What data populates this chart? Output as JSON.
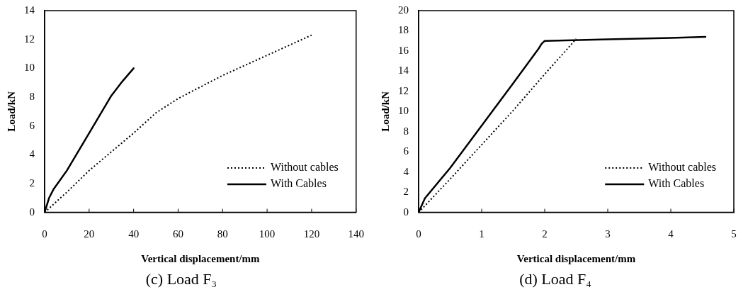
{
  "chart_data": [
    {
      "type": "line",
      "title": "(c) Load F₃",
      "xlabel": "Vertical displacement/mm",
      "ylabel": "Load/kN",
      "xlim": [
        0,
        140
      ],
      "xticks": [
        0,
        20,
        40,
        60,
        80,
        100,
        120,
        140
      ],
      "ylim": [
        0,
        14
      ],
      "yticks": [
        0,
        2,
        4,
        6,
        8,
        10,
        12,
        14
      ],
      "legend": "bottom right",
      "marker": "none",
      "series": [
        {
          "name": "Without cables",
          "color": "#000000",
          "line_style": "dotted",
          "x": [
            0,
            10,
            20,
            30,
            40,
            50,
            60,
            80,
            100,
            120
          ],
          "values": [
            0,
            1.4,
            2.9,
            4.2,
            5.5,
            6.9,
            7.9,
            9.5,
            10.9,
            12.3
          ]
        },
        {
          "name": "With Cables",
          "color": "#000000",
          "line_style": "solid",
          "x": [
            0,
            2,
            4,
            10,
            20,
            25,
            30,
            35,
            40
          ],
          "values": [
            0,
            1,
            1.6,
            2.9,
            5.5,
            6.8,
            8.1,
            9.1,
            10
          ]
        }
      ]
    },
    {
      "type": "line",
      "title": "(d) Load F₄",
      "xlabel": "Vertical displacement/mm",
      "ylabel": "Load/kN",
      "xlim": [
        0,
        5
      ],
      "xticks": [
        0,
        1,
        2,
        3,
        4,
        5
      ],
      "ylim": [
        0,
        20
      ],
      "yticks": [
        0,
        2,
        4,
        6,
        8,
        10,
        12,
        14,
        16,
        18,
        20
      ],
      "legend": "bottom right",
      "marker": "none",
      "series": [
        {
          "name": "Without cables",
          "color": "#000000",
          "line_style": "dotted",
          "x": [
            0,
            0.5,
            1,
            1.5,
            2,
            2.5
          ],
          "values": [
            0,
            3.3,
            6.7,
            10.1,
            13.7,
            17.2
          ]
        },
        {
          "name": "With Cables",
          "color": "#000000",
          "line_style": "solid",
          "x": [
            0,
            0.1,
            0.5,
            1,
            1.5,
            1.9,
            1.95,
            2,
            3,
            4,
            4.55
          ],
          "values": [
            0,
            1.4,
            4.4,
            8.6,
            12.8,
            16.2,
            16.7,
            17,
            17.15,
            17.3,
            17.4
          ]
        }
      ]
    }
  ]
}
